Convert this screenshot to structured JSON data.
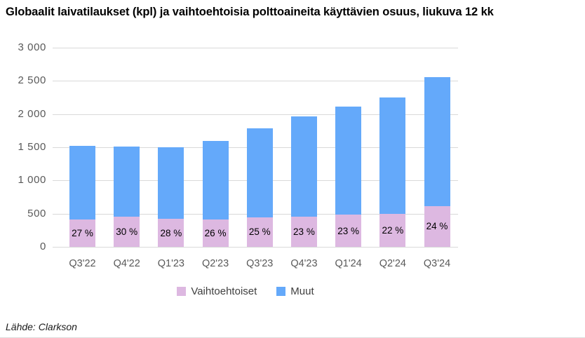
{
  "title": "Globaalit laivatilaukset (kpl) ja vaihtoehtoisia polttoaineita käyttävien osuus, liukuva 12 kk",
  "source": "Lähde: Clarkson",
  "colors": {
    "vaihtoehtoiset": "#DDB8E1",
    "muut": "#64A9FA",
    "gridline": "#D9D9D9",
    "axis_text": "#595959"
  },
  "legend": [
    {
      "label": "Vaihtoehtoiset",
      "color": "#DDB8E1"
    },
    {
      "label": "Muut",
      "color": "#64A9FA"
    }
  ],
  "chart_data": {
    "type": "bar",
    "stacked": true,
    "title": "Globaalit laivatilaukset (kpl) ja vaihtoehtoisia polttoaineita käyttävien osuus, liukuva 12 kk",
    "categories": [
      "Q3'22",
      "Q4'22",
      "Q1'23",
      "Q2'23",
      "Q3'23",
      "Q4'23",
      "Q1'24",
      "Q2'24",
      "Q3'24"
    ],
    "series": [
      {
        "name": "Vaihtoehtoiset",
        "color": "#DDB8E1",
        "values": [
          410,
          455,
          420,
          415,
          445,
          450,
          485,
          495,
          615
        ]
      },
      {
        "name": "Muut",
        "color": "#64A9FA",
        "values": [
          1110,
          1060,
          1080,
          1180,
          1340,
          1510,
          1630,
          1760,
          1945
        ]
      }
    ],
    "totals": [
      1520,
      1515,
      1500,
      1595,
      1785,
      1960,
      2115,
      2255,
      2560
    ],
    "bar_labels": [
      "27 %",
      "30 %",
      "28 %",
      "26 %",
      "25 %",
      "23 %",
      "23 %",
      "22 %",
      "24 %"
    ],
    "xlabel": "",
    "ylabel": "",
    "ylim": [
      0,
      3000
    ],
    "yticks": [
      {
        "value": 0,
        "label": "0"
      },
      {
        "value": 500,
        "label": "500"
      },
      {
        "value": 1000,
        "label": "1 000"
      },
      {
        "value": 1500,
        "label": "1 500"
      },
      {
        "value": 2000,
        "label": "2 000"
      },
      {
        "value": 2500,
        "label": "2 500"
      },
      {
        "value": 3000,
        "label": "3 000"
      }
    ],
    "grid": true,
    "legend_position": "bottom"
  }
}
